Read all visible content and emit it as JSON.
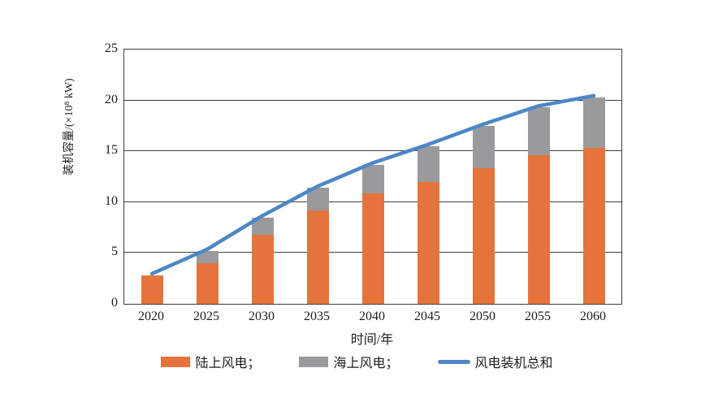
{
  "page": {
    "background": "#ffffff"
  },
  "chart_data": {
    "type": "bar",
    "subtype": "stacked-bars-with-total-line",
    "categories": [
      "2020",
      "2025",
      "2030",
      "2035",
      "2040",
      "2045",
      "2050",
      "2055",
      "2060"
    ],
    "series": [
      {
        "name": "陆上风电",
        "render": "bar",
        "color": "#E4743C",
        "values": [
          2.8,
          4.0,
          6.8,
          9.2,
          10.9,
          12.0,
          13.3,
          14.6,
          15.3
        ]
      },
      {
        "name": "海上风电",
        "render": "bar",
        "color": "#9A9A9C",
        "values": [
          0,
          1.2,
          1.7,
          2.2,
          2.8,
          3.5,
          4.2,
          4.7,
          5.0
        ]
      },
      {
        "name": "风电装机总和",
        "render": "line",
        "color": "#4E86C6",
        "values": [
          2.8,
          5.2,
          8.5,
          11.4,
          13.7,
          15.5,
          17.5,
          19.3,
          20.3
        ]
      }
    ],
    "title": "",
    "xlabel": "时间/年",
    "ylabel": "装机容量/(×10⁸ kW)",
    "ylim": [
      0,
      25
    ],
    "yticks": [
      0,
      5,
      10,
      15,
      20,
      25
    ],
    "grid": true,
    "grid_color": "#3f3f3f",
    "legend_position": "bottom"
  },
  "axes": {
    "x_title": "时间/年",
    "y_title": "装机容量/(×10⁸ kW)",
    "y_tick_labels": [
      "0",
      "5",
      "10",
      "15",
      "20",
      "25"
    ],
    "x_tick_labels": [
      "2020",
      "2025",
      "2030",
      "2035",
      "2040",
      "2045",
      "2050",
      "2055",
      "2060"
    ]
  },
  "legend": {
    "items": [
      {
        "label": "陆上风电；",
        "color": "#E4743C",
        "shape": "rect",
        "name": "legend-onshore-wind"
      },
      {
        "label": "海上风电；",
        "color": "#9A9A9C",
        "shape": "rect",
        "name": "legend-offshore-wind"
      },
      {
        "label": "风电装机总和",
        "color": "#4E86C6",
        "shape": "line",
        "name": "legend-total-wind"
      }
    ]
  }
}
